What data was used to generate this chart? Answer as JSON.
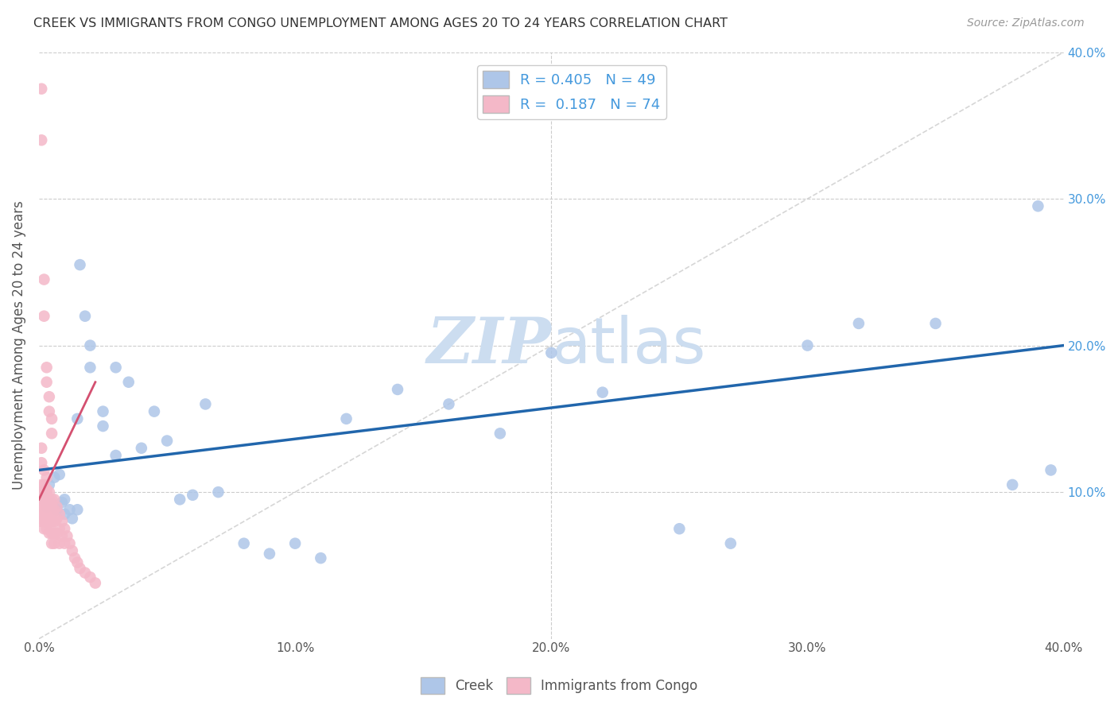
{
  "title": "CREEK VS IMMIGRANTS FROM CONGO UNEMPLOYMENT AMONG AGES 20 TO 24 YEARS CORRELATION CHART",
  "source": "Source: ZipAtlas.com",
  "ylabel": "Unemployment Among Ages 20 to 24 years",
  "xlim": [
    0.0,
    0.4
  ],
  "ylim": [
    0.0,
    0.4
  ],
  "xticks": [
    0.0,
    0.1,
    0.2,
    0.3,
    0.4
  ],
  "yticks": [
    0.1,
    0.2,
    0.3,
    0.4
  ],
  "creek_color": "#aec6e8",
  "congo_color": "#f4b8c8",
  "creek_line_color": "#2166ac",
  "congo_line_color": "#d45070",
  "diag_color": "#cccccc",
  "watermark_color": "#ccddf0",
  "creek_R": 0.405,
  "creek_N": 49,
  "congo_R": 0.187,
  "congo_N": 74,
  "legend_color": "#4499dd",
  "creek_x": [
    0.001,
    0.002,
    0.003,
    0.004,
    0.005,
    0.006,
    0.007,
    0.008,
    0.009,
    0.01,
    0.012,
    0.013,
    0.015,
    0.016,
    0.018,
    0.02,
    0.025,
    0.03,
    0.035,
    0.04,
    0.045,
    0.05,
    0.055,
    0.06,
    0.065,
    0.07,
    0.08,
    0.09,
    0.1,
    0.11,
    0.12,
    0.14,
    0.16,
    0.18,
    0.2,
    0.22,
    0.25,
    0.27,
    0.3,
    0.32,
    0.35,
    0.38,
    0.39,
    0.395,
    0.01,
    0.015,
    0.02,
    0.025,
    0.03
  ],
  "creek_y": [
    0.1,
    0.095,
    0.09,
    0.105,
    0.092,
    0.11,
    0.088,
    0.112,
    0.093,
    0.095,
    0.088,
    0.082,
    0.088,
    0.255,
    0.22,
    0.185,
    0.155,
    0.185,
    0.175,
    0.13,
    0.155,
    0.135,
    0.095,
    0.098,
    0.16,
    0.1,
    0.065,
    0.058,
    0.065,
    0.055,
    0.15,
    0.17,
    0.16,
    0.14,
    0.195,
    0.168,
    0.075,
    0.065,
    0.2,
    0.215,
    0.215,
    0.105,
    0.295,
    0.115,
    0.085,
    0.15,
    0.2,
    0.145,
    0.125
  ],
  "congo_x": [
    0.001,
    0.001,
    0.001,
    0.001,
    0.001,
    0.001,
    0.001,
    0.001,
    0.002,
    0.002,
    0.002,
    0.002,
    0.002,
    0.002,
    0.002,
    0.002,
    0.003,
    0.003,
    0.003,
    0.003,
    0.003,
    0.003,
    0.003,
    0.003,
    0.004,
    0.004,
    0.004,
    0.004,
    0.004,
    0.004,
    0.004,
    0.004,
    0.005,
    0.005,
    0.005,
    0.005,
    0.005,
    0.005,
    0.005,
    0.005,
    0.006,
    0.006,
    0.006,
    0.006,
    0.006,
    0.007,
    0.007,
    0.007,
    0.008,
    0.008,
    0.008,
    0.009,
    0.009,
    0.01,
    0.01,
    0.011,
    0.012,
    0.013,
    0.014,
    0.015,
    0.016,
    0.018,
    0.02,
    0.022,
    0.001,
    0.001,
    0.002,
    0.002,
    0.003,
    0.003,
    0.003,
    0.004,
    0.004,
    0.005
  ],
  "congo_y": [
    0.375,
    0.34,
    0.098,
    0.085,
    0.105,
    0.095,
    0.09,
    0.08,
    0.245,
    0.22,
    0.1,
    0.095,
    0.09,
    0.085,
    0.08,
    0.075,
    0.185,
    0.175,
    0.1,
    0.095,
    0.09,
    0.085,
    0.08,
    0.075,
    0.165,
    0.155,
    0.1,
    0.095,
    0.09,
    0.085,
    0.078,
    0.072,
    0.15,
    0.14,
    0.095,
    0.09,
    0.085,
    0.08,
    0.072,
    0.065,
    0.095,
    0.088,
    0.08,
    0.072,
    0.065,
    0.09,
    0.082,
    0.072,
    0.085,
    0.075,
    0.065,
    0.08,
    0.07,
    0.075,
    0.065,
    0.07,
    0.065,
    0.06,
    0.055,
    0.052,
    0.048,
    0.045,
    0.042,
    0.038,
    0.13,
    0.12,
    0.115,
    0.105,
    0.11,
    0.102,
    0.098,
    0.092,
    0.088,
    0.082
  ],
  "creek_line_x": [
    0.0,
    0.4
  ],
  "creek_line_y": [
    0.115,
    0.2
  ],
  "congo_line_x": [
    0.0,
    0.022
  ],
  "congo_line_y": [
    0.095,
    0.175
  ]
}
